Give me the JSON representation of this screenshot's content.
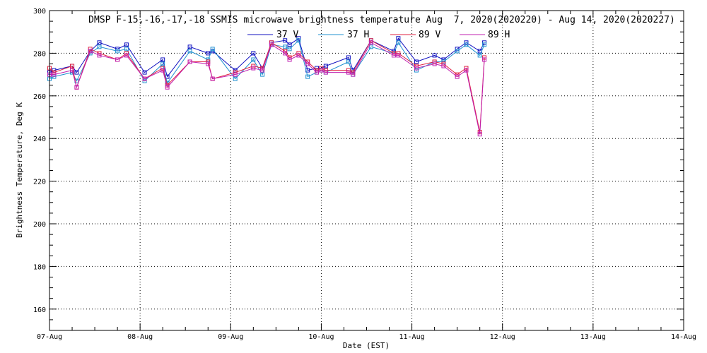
{
  "chart_data": {
    "type": "line",
    "title": "DMSP F-15,-16,-17,-18 SSMIS microwave brightness temperature Aug  7, 2020(2020220) - Aug 14, 2020(2020227)",
    "xlabel": "Date (EST)",
    "ylabel": "Brightness Temperature, Deg K",
    "x_start": "07-Aug",
    "x_end": "14-Aug",
    "xlim_days": [
      0,
      7
    ],
    "ylim": [
      150,
      300
    ],
    "y_ticks": [
      160,
      180,
      200,
      220,
      240,
      260,
      280,
      300
    ],
    "x_ticks": [
      {
        "label": "07-Aug",
        "day": 0
      },
      {
        "label": "08-Aug",
        "day": 1
      },
      {
        "label": "09-Aug",
        "day": 2
      },
      {
        "label": "10-Aug",
        "day": 3
      },
      {
        "label": "11-Aug",
        "day": 4
      },
      {
        "label": "12-Aug",
        "day": 5
      },
      {
        "label": "13-Aug",
        "day": 6
      },
      {
        "label": "14-Aug",
        "day": 7
      }
    ],
    "grid": true,
    "legend_position": "top",
    "series": [
      {
        "name": "37 V",
        "color": "#1010c0",
        "x": [
          0.0,
          0.05,
          0.25,
          0.3,
          0.45,
          0.55,
          0.75,
          0.85,
          1.05,
          1.25,
          1.3,
          1.55,
          1.75,
          1.8,
          2.05,
          2.25,
          2.35,
          2.45,
          2.6,
          2.65,
          2.75,
          2.85,
          2.95,
          3.0,
          3.05,
          3.3,
          3.35,
          3.55,
          3.8,
          3.85,
          4.05,
          4.25,
          4.35,
          4.5,
          4.6,
          4.75,
          4.8
        ],
        "y": [
          271,
          272,
          274,
          271,
          281,
          285,
          282,
          284,
          271,
          277,
          269,
          283,
          280,
          281,
          272,
          280,
          273,
          285,
          286,
          284,
          287,
          272,
          273,
          273,
          274,
          278,
          272,
          286,
          281,
          287,
          276,
          279,
          277,
          282,
          285,
          281,
          285
        ]
      },
      {
        "name": "37 H",
        "color": "#2090d0",
        "x": [
          0.0,
          0.05,
          0.25,
          0.3,
          0.45,
          0.55,
          0.75,
          0.85,
          1.05,
          1.25,
          1.3,
          1.55,
          1.75,
          1.8,
          2.05,
          2.25,
          2.35,
          2.45,
          2.6,
          2.65,
          2.75,
          2.85,
          2.95,
          3.0,
          3.05,
          3.3,
          3.35,
          3.55,
          3.8,
          3.85,
          4.05,
          4.25,
          4.35,
          4.5,
          4.6,
          4.75,
          4.8
        ],
        "y": [
          268,
          269,
          271,
          267,
          280,
          283,
          281,
          282,
          267,
          275,
          266,
          281,
          277,
          282,
          268,
          277,
          270,
          284,
          283,
          282,
          286,
          269,
          271,
          272,
          271,
          276,
          270,
          283,
          280,
          285,
          272,
          276,
          276,
          281,
          284,
          279,
          284
        ]
      },
      {
        "name": "89 V",
        "color": "#e02040",
        "x": [
          0.0,
          0.05,
          0.25,
          0.3,
          0.45,
          0.55,
          0.75,
          0.85,
          1.05,
          1.25,
          1.3,
          1.55,
          1.75,
          1.8,
          2.05,
          2.25,
          2.35,
          2.45,
          2.6,
          2.65,
          2.75,
          2.85,
          2.95,
          3.0,
          3.05,
          3.3,
          3.35,
          3.55,
          3.8,
          3.85,
          4.05,
          4.25,
          4.35,
          4.5,
          4.6,
          4.75,
          4.8
        ],
        "y": [
          273,
          271,
          274,
          264,
          282,
          280,
          277,
          280,
          268,
          273,
          265,
          276,
          276,
          268,
          271,
          274,
          273,
          285,
          281,
          278,
          280,
          276,
          272,
          273,
          272,
          272,
          271,
          286,
          280,
          280,
          274,
          276,
          275,
          270,
          273,
          243,
          278
        ]
      },
      {
        "name": "89 H",
        "color": "#c020b0",
        "x": [
          0.0,
          0.05,
          0.25,
          0.3,
          0.45,
          0.55,
          0.75,
          0.85,
          1.05,
          1.25,
          1.3,
          1.55,
          1.75,
          1.8,
          2.05,
          2.25,
          2.35,
          2.45,
          2.6,
          2.65,
          2.75,
          2.85,
          2.95,
          3.0,
          3.05,
          3.3,
          3.35,
          3.55,
          3.8,
          3.85,
          4.05,
          4.25,
          4.35,
          4.5,
          4.6,
          4.75,
          4.8
        ],
        "y": [
          270,
          270,
          272,
          264,
          281,
          279,
          277,
          279,
          268,
          272,
          264,
          276,
          275,
          268,
          270,
          273,
          272,
          284,
          280,
          277,
          279,
          275,
          271,
          272,
          271,
          271,
          270,
          285,
          279,
          279,
          273,
          275,
          274,
          269,
          272,
          242,
          277
        ]
      }
    ]
  }
}
